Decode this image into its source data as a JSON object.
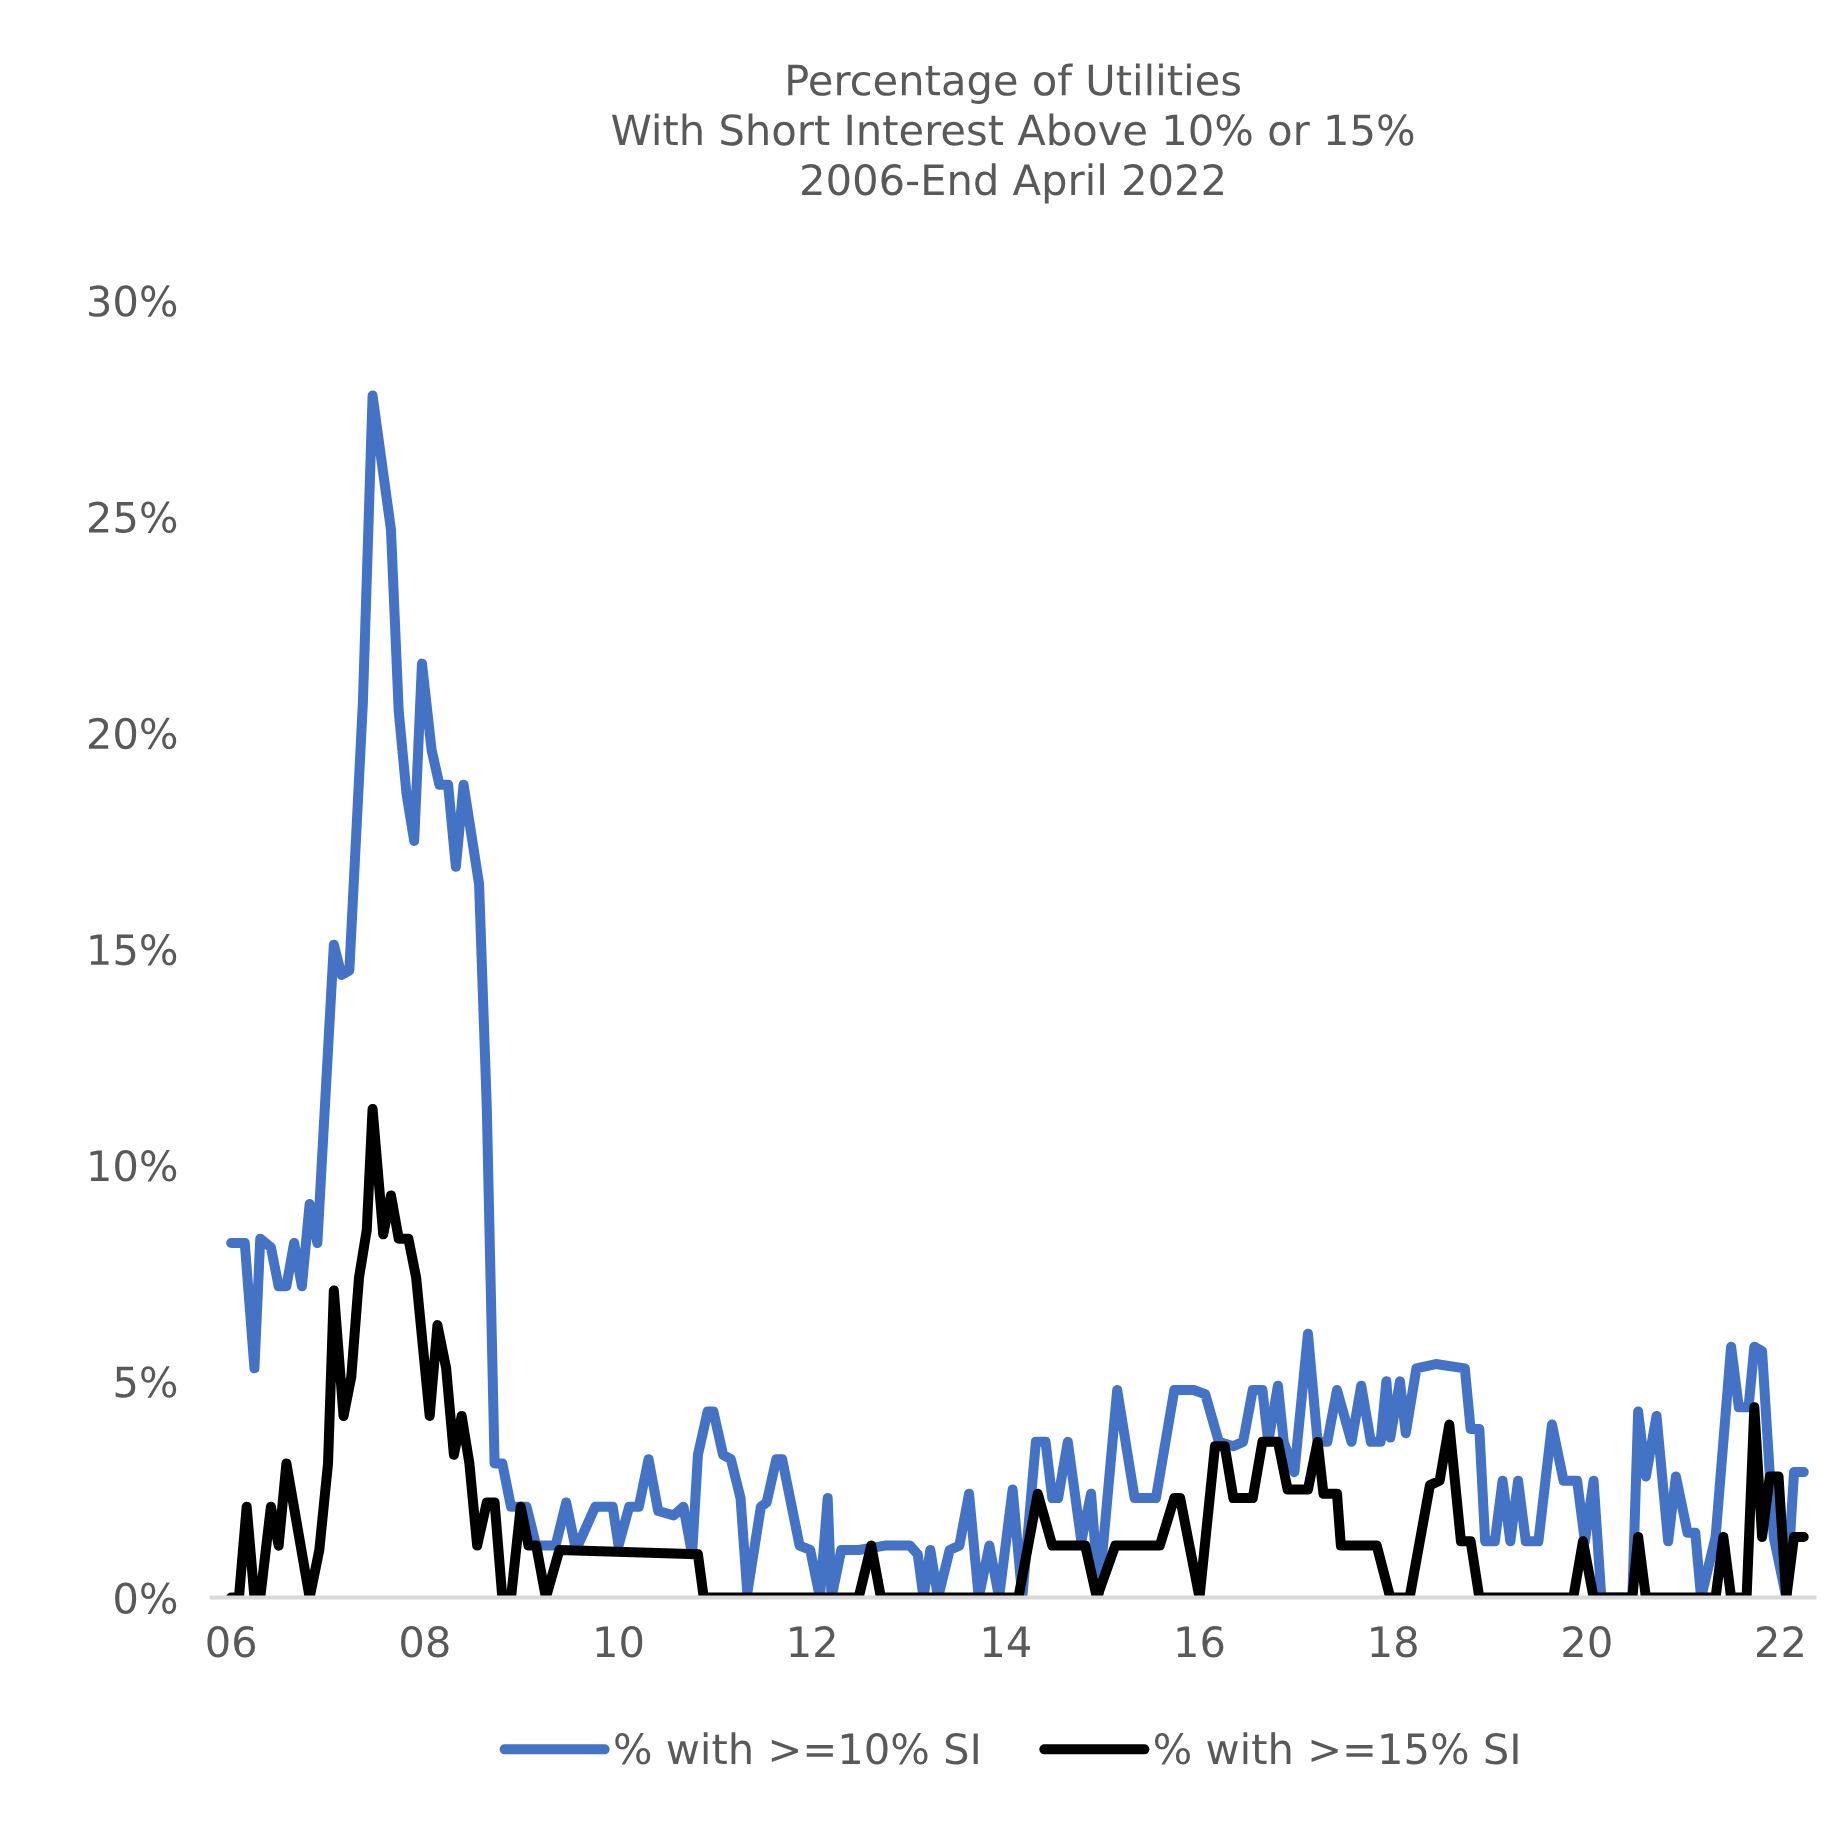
{
  "chart_data": {
    "type": "line",
    "title": "Percentage of Utilities\nWith Short Interest Above 10% or 15%\n2006-End April 2022",
    "xlim": [
      2005.8,
      2022.35
    ],
    "ylim": [
      0,
      30
    ],
    "xticks": [
      {
        "value": 2006,
        "label": "06"
      },
      {
        "value": 2008,
        "label": "08"
      },
      {
        "value": 2010,
        "label": "10"
      },
      {
        "value": 2012,
        "label": "12"
      },
      {
        "value": 2014,
        "label": "14"
      },
      {
        "value": 2016,
        "label": "16"
      },
      {
        "value": 2018,
        "label": "18"
      },
      {
        "value": 2020,
        "label": "20"
      },
      {
        "value": 2022,
        "label": "22"
      }
    ],
    "yticks": [
      {
        "value": 0,
        "label": "0%"
      },
      {
        "value": 5,
        "label": "5%"
      },
      {
        "value": 10,
        "label": "10%"
      },
      {
        "value": 15,
        "label": "15%"
      },
      {
        "value": 20,
        "label": "20%"
      },
      {
        "value": 25,
        "label": "25%"
      },
      {
        "value": 30,
        "label": "30%"
      }
    ],
    "grid": false,
    "legend": "bottom",
    "marker": "none",
    "line_style": "solid",
    "series": [
      {
        "name": "% with >=10% SI",
        "color": "#4472c4",
        "x": [
          2006.0,
          2006.14,
          2006.24,
          2006.3,
          2006.41,
          2006.49,
          2006.57,
          2006.65,
          2006.73,
          2006.81,
          2006.89,
          2007.06,
          2007.14,
          2007.22,
          2007.36,
          2007.46,
          2007.65,
          2007.73,
          2007.81,
          2007.89,
          2007.97,
          2008.07,
          2008.15,
          2008.24,
          2008.32,
          2008.4,
          2008.56,
          2008.64,
          2008.72,
          2008.8,
          2008.89,
          2009.05,
          2009.15,
          2009.35,
          2009.46,
          2009.56,
          2009.76,
          2009.94,
          2010.0,
          2010.11,
          2010.21,
          2010.31,
          2010.41,
          2010.57,
          2010.67,
          2010.76,
          2010.82,
          2010.92,
          2010.98,
          2011.08,
          2011.16,
          2011.26,
          2011.33,
          2011.47,
          2011.53,
          2011.63,
          2011.69,
          2011.87,
          2011.98,
          2012.08,
          2012.16,
          2012.2,
          2012.3,
          2012.48,
          2012.75,
          2013.01,
          2013.09,
          2013.15,
          2013.22,
          2013.3,
          2013.42,
          2013.52,
          2013.62,
          2013.72,
          2013.83,
          2013.93,
          2014.07,
          2014.17,
          2014.31,
          2014.41,
          2014.48,
          2014.54,
          2014.64,
          2014.78,
          2014.88,
          2014.96,
          2015.15,
          2015.33,
          2015.55,
          2015.74,
          2015.94,
          2016.06,
          2016.2,
          2016.35,
          2016.45,
          2016.55,
          2016.65,
          2016.71,
          2016.81,
          2016.87,
          2016.98,
          2017.12,
          2017.22,
          2017.32,
          2017.42,
          2017.57,
          2017.67,
          2017.77,
          2017.87,
          2017.93,
          2017.97,
          2018.07,
          2018.13,
          2018.24,
          2018.44,
          2018.74,
          2018.8,
          2018.89,
          2018.95,
          2019.05,
          2019.13,
          2019.21,
          2019.29,
          2019.37,
          2019.5,
          2019.64,
          2019.76,
          2019.9,
          2019.98,
          2020.07,
          2020.15,
          2020.47,
          2020.53,
          2020.61,
          2020.72,
          2020.84,
          2020.92,
          2021.04,
          2021.12,
          2021.18,
          2021.33,
          2021.49,
          2021.57,
          2021.67,
          2021.73,
          2021.81,
          2021.93,
          2022.06,
          2022.14,
          2022.24
        ],
        "values": [
          8.2,
          8.2,
          5.3,
          8.3,
          8.1,
          7.2,
          7.2,
          8.2,
          7.2,
          9.1,
          8.2,
          15.1,
          14.4,
          14.5,
          20.7,
          27.8,
          24.7,
          20.5,
          18.6,
          17.5,
          21.6,
          19.6,
          18.8,
          18.8,
          16.9,
          18.8,
          16.5,
          11.3,
          3.1,
          3.1,
          2.1,
          2.1,
          1.2,
          1.2,
          2.2,
          1.1,
          2.1,
          2.1,
          1.2,
          2.1,
          2.1,
          3.2,
          2.0,
          1.9,
          2.1,
          1.0,
          3.3,
          4.3,
          4.3,
          3.3,
          3.2,
          2.3,
          0.1,
          2.1,
          2.2,
          3.2,
          3.2,
          1.2,
          1.1,
          0,
          2.3,
          0,
          1.1,
          1.1,
          1.2,
          1.2,
          1.0,
          0,
          1.1,
          0,
          1.1,
          1.2,
          2.4,
          0,
          1.2,
          0,
          2.5,
          0,
          3.6,
          3.6,
          2.3,
          2.3,
          3.6,
          1.3,
          2.4,
          0.1,
          4.8,
          2.3,
          2.3,
          4.8,
          4.8,
          4.7,
          3.6,
          3.5,
          3.6,
          4.8,
          4.8,
          3.6,
          4.9,
          3.6,
          2.9,
          6.1,
          3.6,
          3.6,
          4.8,
          3.6,
          4.9,
          3.6,
          3.6,
          5.0,
          3.7,
          5.0,
          3.8,
          5.3,
          5.4,
          5.3,
          3.9,
          3.9,
          1.3,
          1.3,
          2.7,
          1.3,
          2.7,
          1.3,
          1.3,
          4.0,
          2.7,
          2.7,
          1.3,
          2.7,
          0,
          0,
          4.3,
          2.8,
          4.2,
          1.3,
          2.8,
          1.5,
          1.5,
          0,
          1.4,
          5.8,
          4.4,
          4.4,
          5.8,
          5.7,
          1.4,
          0,
          2.9,
          2.9
        ]
      },
      {
        "name": "% with >=15% SI",
        "color": "#000000",
        "x": [
          2006.0,
          2006.08,
          2006.16,
          2006.24,
          2006.3,
          2006.41,
          2006.49,
          2006.57,
          2006.81,
          2006.91,
          2007.0,
          2007.06,
          2007.16,
          2007.24,
          2007.32,
          2007.4,
          2007.46,
          2007.57,
          2007.65,
          2007.73,
          2007.83,
          2007.91,
          2008.05,
          2008.13,
          2008.22,
          2008.3,
          2008.38,
          2008.46,
          2008.54,
          2008.64,
          2008.72,
          2008.8,
          2008.89,
          2008.99,
          2009.07,
          2009.15,
          2009.25,
          2009.39,
          2010.82,
          2010.88,
          2012.48,
          2012.61,
          2012.71,
          2014.13,
          2014.33,
          2014.48,
          2014.82,
          2014.94,
          2015.13,
          2015.59,
          2015.74,
          2015.8,
          2016.0,
          2016.16,
          2016.26,
          2016.35,
          2016.55,
          2016.65,
          2016.81,
          2016.91,
          2017.12,
          2017.22,
          2017.28,
          2017.42,
          2017.46,
          2017.83,
          2017.97,
          2018.17,
          2018.38,
          2018.48,
          2018.58,
          2018.7,
          2018.8,
          2018.89,
          2019.86,
          2019.96,
          2020.07,
          2020.47,
          2020.53,
          2020.61,
          2021.33,
          2021.41,
          2021.49,
          2021.65,
          2021.73,
          2021.81,
          2021.89,
          2021.98,
          2022.06,
          2022.14,
          2022.24
        ],
        "values": [
          0,
          0,
          2.1,
          0,
          0,
          2.1,
          1.2,
          3.1,
          0,
          1.1,
          3.1,
          7.1,
          4.2,
          5.1,
          7.4,
          8.5,
          11.3,
          8.4,
          9.3,
          8.3,
          8.3,
          7.4,
          4.2,
          6.3,
          5.3,
          3.3,
          4.2,
          3.1,
          1.2,
          2.2,
          2.2,
          0,
          0,
          2.1,
          1.2,
          1.2,
          0,
          1.1,
          1.0,
          0,
          0,
          1.2,
          0,
          0,
          2.4,
          1.2,
          1.2,
          0,
          1.2,
          1.2,
          2.3,
          2.3,
          0,
          3.5,
          3.5,
          2.3,
          2.3,
          3.6,
          3.6,
          2.5,
          2.5,
          3.6,
          2.4,
          2.4,
          1.2,
          1.2,
          0,
          0,
          2.6,
          2.7,
          4.0,
          1.3,
          1.3,
          0,
          0,
          1.3,
          0,
          0,
          1.4,
          0,
          0,
          1.4,
          0,
          0,
          4.4,
          1.4,
          2.8,
          2.8,
          0,
          1.4,
          1.4
        ]
      }
    ]
  }
}
